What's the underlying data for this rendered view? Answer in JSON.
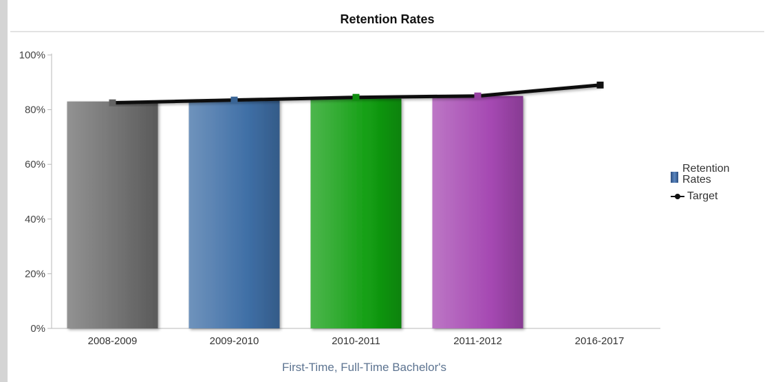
{
  "chart_data": {
    "type": "bar",
    "title": "Retention Rates",
    "xlabel": "First-Time, Full-Time Bachelor's",
    "ylabel": "",
    "ylim": [
      0,
      100
    ],
    "yticks": [
      0,
      20,
      40,
      60,
      80,
      100
    ],
    "ytick_labels": [
      "0%",
      "20%",
      "40%",
      "60%",
      "80%",
      "100%"
    ],
    "categories": [
      "2008-2009",
      "2009-2010",
      "2010-2011",
      "2011-2012",
      "2016-2017"
    ],
    "series": [
      {
        "name": "Retention Rates",
        "type": "bar",
        "values": [
          83,
          83.5,
          84,
          85,
          null
        ],
        "colors": [
          "#6e6e6e",
          "#3f6fa6",
          "#129e12",
          "#a548b2",
          null
        ]
      },
      {
        "name": "Target",
        "type": "line",
        "color": "#111111",
        "values": [
          82.5,
          83.5,
          84.5,
          85,
          89
        ]
      }
    ],
    "legend_position": "right",
    "grid": false
  },
  "legend": {
    "bars_label": "Retention Rates",
    "line_label": "Target"
  }
}
